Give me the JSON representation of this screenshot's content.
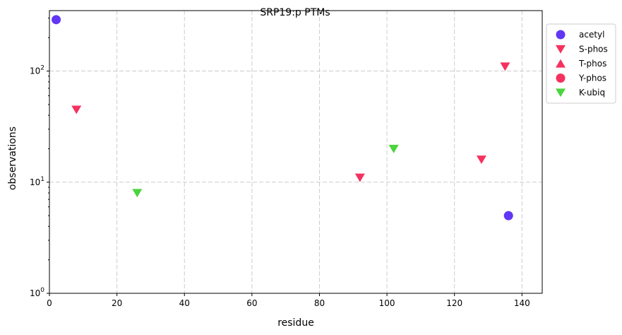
{
  "chart_data": {
    "type": "scatter",
    "title": "SRP19:p PTMs",
    "xlabel": "residue",
    "ylabel": "observations",
    "xlim": [
      0,
      146
    ],
    "ylim": [
      1,
      350
    ],
    "yscale": "log",
    "grid": true,
    "legend_position": "outside top-right",
    "x_ticks": [
      "0",
      "20",
      "40",
      "60",
      "80",
      "100",
      "120",
      "140"
    ],
    "x_tick_values": [
      0,
      20,
      40,
      60,
      80,
      100,
      120,
      140
    ],
    "y_ticks": [
      {
        "base": "10",
        "exp": "0",
        "value": 1
      },
      {
        "base": "10",
        "exp": "1",
        "value": 10
      },
      {
        "base": "10",
        "exp": "2",
        "value": 100
      }
    ],
    "series": [
      {
        "name": "acetyl",
        "marker": "circle",
        "color": "#6236f5",
        "points": [
          {
            "x": 2,
            "y": 290
          },
          {
            "x": 136,
            "y": 5
          }
        ]
      },
      {
        "name": "S-phos",
        "marker": "triangle-down",
        "color": "#f5325f",
        "points": [
          {
            "x": 8,
            "y": 45
          },
          {
            "x": 92,
            "y": 11
          },
          {
            "x": 128,
            "y": 16
          },
          {
            "x": 135,
            "y": 110
          }
        ]
      },
      {
        "name": "T-phos",
        "marker": "triangle-up",
        "color": "#f5325f",
        "points": []
      },
      {
        "name": "Y-phos",
        "marker": "circle",
        "color": "#f5325f",
        "points": []
      },
      {
        "name": "K-ubiq",
        "marker": "triangle-down",
        "color": "#4bd43c",
        "points": [
          {
            "x": 26,
            "y": 8
          },
          {
            "x": 102,
            "y": 20
          }
        ]
      }
    ]
  }
}
